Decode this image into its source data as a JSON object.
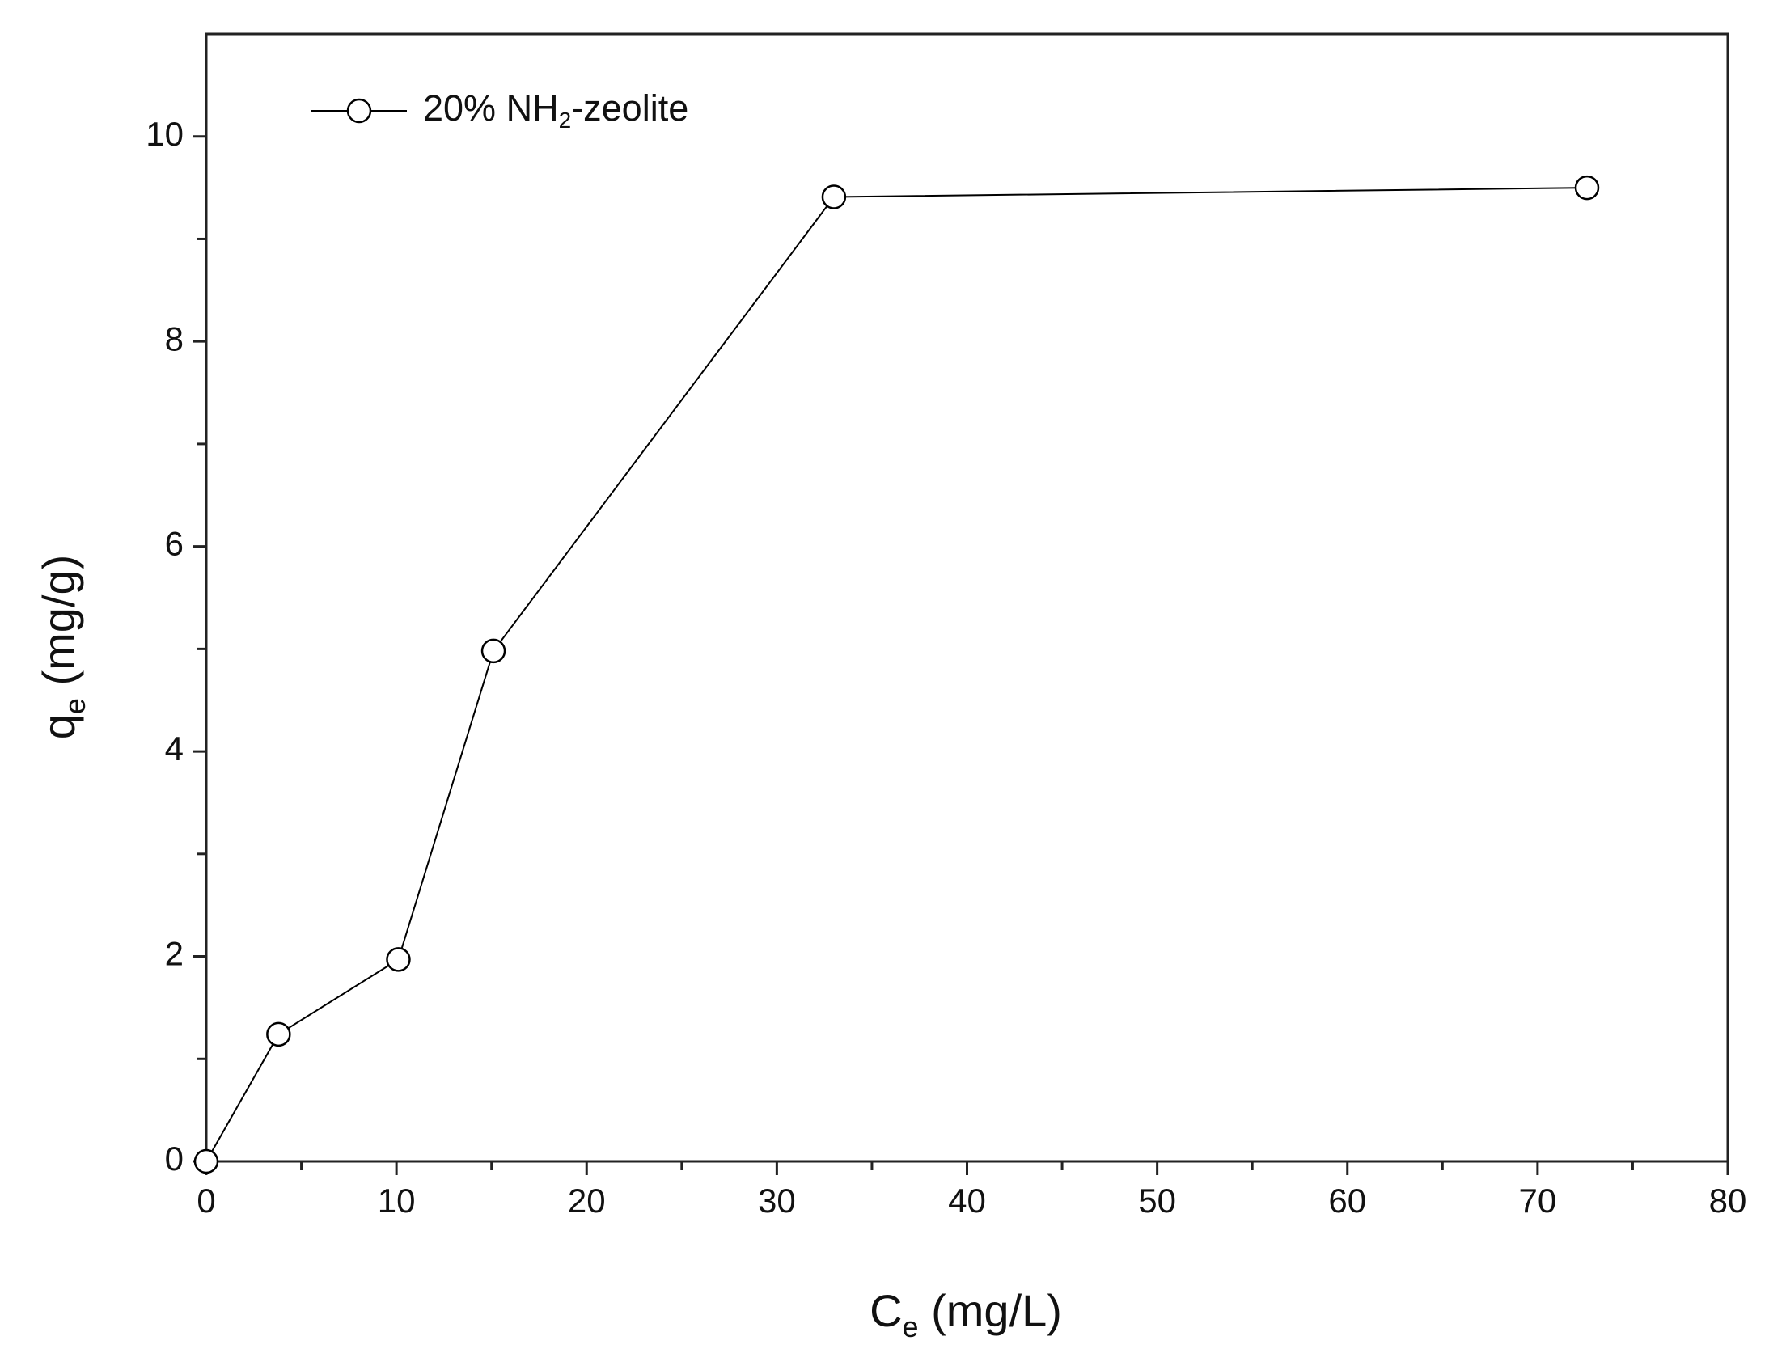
{
  "chart_data": {
    "type": "line",
    "xlabel": [
      "C",
      "e",
      " (mg/L)"
    ],
    "ylabel": [
      "q",
      "e",
      " (mg/g)"
    ],
    "x": [
      0,
      3.8,
      10.1,
      15.1,
      33,
      72.6
    ],
    "series": [
      {
        "name": [
          "20% NH",
          "2",
          "-zeolite"
        ],
        "color": "#000000",
        "values": [
          0,
          1.24,
          1.97,
          4.98,
          9.41,
          9.5
        ]
      }
    ],
    "xlim": [
      0,
      80
    ],
    "xticks": [
      0,
      10,
      20,
      30,
      40,
      50,
      60,
      70,
      80
    ],
    "ylim": [
      0,
      11
    ],
    "yticks": [
      0,
      2,
      4,
      6,
      8,
      10
    ],
    "grid": false,
    "legend": "top-left"
  }
}
